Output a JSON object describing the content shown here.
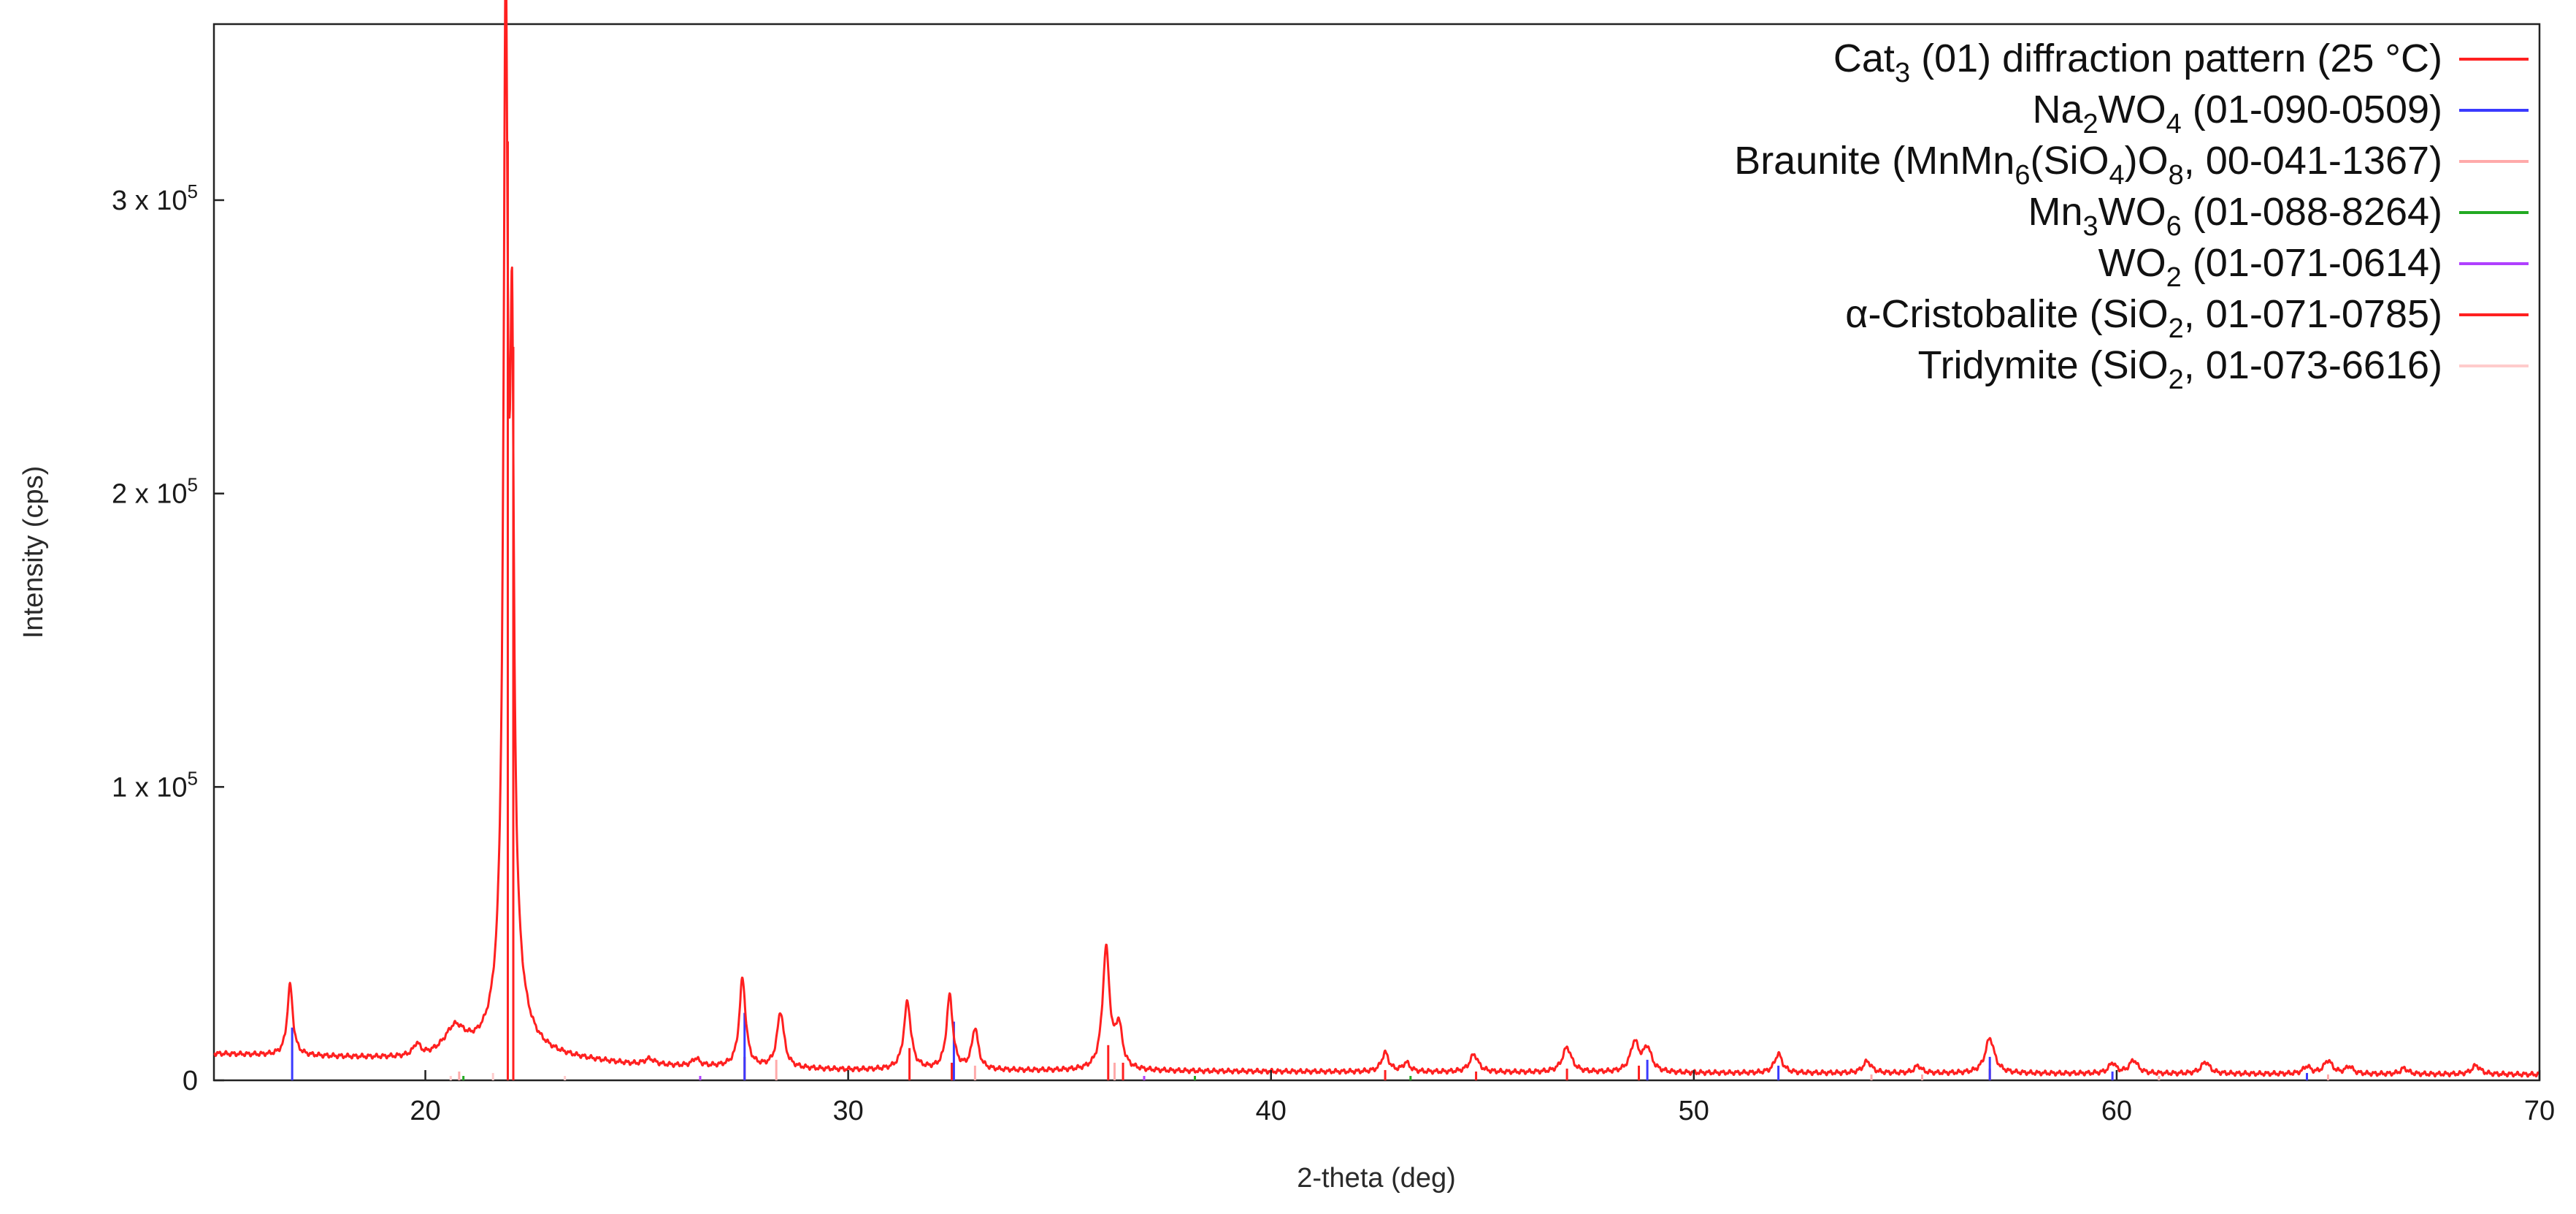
{
  "chart_data": {
    "type": "line",
    "xlabel": "2-theta (deg)",
    "ylabel": "Intensity (cps)",
    "xlim": [
      15,
      70
    ],
    "ylim": [
      0,
      360000
    ],
    "grid": false,
    "legend_position": "top-right",
    "x_ticks": [
      {
        "value": 20,
        "label": "20"
      },
      {
        "value": 30,
        "label": "30"
      },
      {
        "value": 40,
        "label": "40"
      },
      {
        "value": 50,
        "label": "50"
      },
      {
        "value": 60,
        "label": "60"
      },
      {
        "value": 70,
        "label": "70"
      }
    ],
    "y_ticks": [
      {
        "value": 0,
        "label": "0",
        "base": "",
        "exp": ""
      },
      {
        "value": 100000,
        "label": "",
        "base": "1 x 10",
        "exp": "5"
      },
      {
        "value": 200000,
        "label": "",
        "base": "2 x 10",
        "exp": "5"
      },
      {
        "value": 300000,
        "label": "",
        "base": "3 x 10",
        "exp": "5"
      }
    ],
    "pattern": {
      "color": "#ff2020",
      "baseline": [
        [
          15,
          9000
        ],
        [
          20,
          7000
        ],
        [
          22,
          9000
        ],
        [
          25,
          5000
        ],
        [
          30,
          3500
        ],
        [
          40,
          3000
        ],
        [
          50,
          2500
        ],
        [
          60,
          2300
        ],
        [
          70,
          2000
        ]
      ],
      "peaks": [
        {
          "x": 16.8,
          "y": 24000,
          "w": 0.08
        },
        {
          "x": 19.8,
          "y": 4000,
          "w": 0.1
        },
        {
          "x": 20.7,
          "y": 9000,
          "w": 0.3
        },
        {
          "x": 21.9,
          "y": 318000,
          "w": 0.06
        },
        {
          "x": 22.05,
          "y": 180000,
          "w": 0.05
        },
        {
          "x": 22.0,
          "y": 45000,
          "w": 0.25
        },
        {
          "x": 25.3,
          "y": 2000,
          "w": 0.15
        },
        {
          "x": 26.4,
          "y": 2500,
          "w": 0.1
        },
        {
          "x": 27.5,
          "y": 30000,
          "w": 0.09
        },
        {
          "x": 28.4,
          "y": 19000,
          "w": 0.1
        },
        {
          "x": 31.4,
          "y": 23000,
          "w": 0.1
        },
        {
          "x": 32.4,
          "y": 25000,
          "w": 0.09
        },
        {
          "x": 33.0,
          "y": 14000,
          "w": 0.09
        },
        {
          "x": 36.1,
          "y": 41000,
          "w": 0.1
        },
        {
          "x": 36.4,
          "y": 14000,
          "w": 0.1
        },
        {
          "x": 42.7,
          "y": 6500,
          "w": 0.1
        },
        {
          "x": 43.2,
          "y": 3000,
          "w": 0.1
        },
        {
          "x": 44.8,
          "y": 6000,
          "w": 0.12
        },
        {
          "x": 47.0,
          "y": 8500,
          "w": 0.13
        },
        {
          "x": 48.6,
          "y": 10000,
          "w": 0.12
        },
        {
          "x": 48.9,
          "y": 8000,
          "w": 0.12
        },
        {
          "x": 52.0,
          "y": 6500,
          "w": 0.11
        },
        {
          "x": 54.1,
          "y": 4000,
          "w": 0.12
        },
        {
          "x": 55.3,
          "y": 2500,
          "w": 0.1
        },
        {
          "x": 57.0,
          "y": 12000,
          "w": 0.13
        },
        {
          "x": 59.9,
          "y": 3500,
          "w": 0.1
        },
        {
          "x": 60.4,
          "y": 4500,
          "w": 0.12
        },
        {
          "x": 62.1,
          "y": 4000,
          "w": 0.12
        },
        {
          "x": 64.5,
          "y": 2500,
          "w": 0.1
        },
        {
          "x": 65.0,
          "y": 4500,
          "w": 0.12
        },
        {
          "x": 65.5,
          "y": 2500,
          "w": 0.1
        },
        {
          "x": 66.8,
          "y": 2000,
          "w": 0.1
        },
        {
          "x": 68.5,
          "y": 3000,
          "w": 0.12
        }
      ]
    },
    "reference_sticks": [
      {
        "color": "#ff2020",
        "sticks": [
          [
            21.95,
            320000
          ],
          [
            22.08,
            250000
          ],
          [
            27.55,
            8000
          ],
          [
            31.45,
            11000
          ],
          [
            32.45,
            6000
          ],
          [
            36.15,
            12000
          ],
          [
            36.5,
            6000
          ],
          [
            42.7,
            3500
          ],
          [
            44.85,
            3000
          ],
          [
            47.0,
            4000
          ],
          [
            48.7,
            5000
          ],
          [
            57.0,
            4000
          ]
        ]
      },
      {
        "color": "#3a3aff",
        "sticks": [
          [
            16.85,
            18000
          ],
          [
            27.55,
            23000
          ],
          [
            32.5,
            20000
          ],
          [
            48.9,
            7000
          ],
          [
            52.0,
            5000
          ],
          [
            57.0,
            8000
          ],
          [
            59.9,
            3000
          ],
          [
            64.5,
            2500
          ]
        ]
      },
      {
        "color": "#ffaaaa",
        "sticks": [
          [
            20.8,
            3000
          ],
          [
            28.3,
            7000
          ],
          [
            33.0,
            5000
          ],
          [
            36.3,
            6000
          ],
          [
            54.2,
            2000
          ],
          [
            55.4,
            2000
          ],
          [
            61.0,
            1500
          ],
          [
            65.0,
            2000
          ]
        ]
      },
      {
        "color": "#22aa22",
        "sticks": [
          [
            20.9,
            1500
          ],
          [
            38.2,
            1500
          ],
          [
            43.3,
            1500
          ]
        ]
      },
      {
        "color": "#b040ff",
        "sticks": [
          [
            26.5,
            1500
          ],
          [
            37.0,
            1500
          ]
        ]
      },
      {
        "color": "#ffcccc",
        "sticks": [
          [
            20.6,
            1500
          ],
          [
            21.6,
            2500
          ],
          [
            23.3,
            1500
          ]
        ]
      }
    ],
    "legend": [
      {
        "parts": [
          {
            "t": "Cat"
          },
          {
            "t": "3",
            "sub": true
          },
          {
            "t": " (01) diffraction pattern (25 °C)"
          }
        ],
        "color": "#ff2020"
      },
      {
        "parts": [
          {
            "t": "Na"
          },
          {
            "t": "2",
            "sub": true
          },
          {
            "t": "WO"
          },
          {
            "t": "4",
            "sub": true
          },
          {
            "t": " (01-090-0509)"
          }
        ],
        "color": "#3a3aff"
      },
      {
        "parts": [
          {
            "t": "Braunite (MnMn"
          },
          {
            "t": "6",
            "sub": true
          },
          {
            "t": "(SiO"
          },
          {
            "t": "4",
            "sub": true
          },
          {
            "t": ")O"
          },
          {
            "t": "8",
            "sub": true
          },
          {
            "t": ", 00-041-1367)"
          }
        ],
        "color": "#ffaaaa"
      },
      {
        "parts": [
          {
            "t": "Mn"
          },
          {
            "t": "3",
            "sub": true
          },
          {
            "t": "WO"
          },
          {
            "t": "6",
            "sub": true
          },
          {
            "t": " (01-088-8264)"
          }
        ],
        "color": "#22aa22"
      },
      {
        "parts": [
          {
            "t": "WO"
          },
          {
            "t": "2",
            "sub": true
          },
          {
            "t": " (01-071-0614)"
          }
        ],
        "color": "#b040ff"
      },
      {
        "parts": [
          {
            "t": "α-Cristobalite (SiO"
          },
          {
            "t": "2",
            "sub": true
          },
          {
            "t": ", 01-071-0785)"
          }
        ],
        "color": "#ff2020"
      },
      {
        "parts": [
          {
            "t": "Tridymite (SiO"
          },
          {
            "t": "2",
            "sub": true
          },
          {
            "t": ", 01-073-6616)"
          }
        ],
        "color": "#ffcccc"
      }
    ]
  }
}
